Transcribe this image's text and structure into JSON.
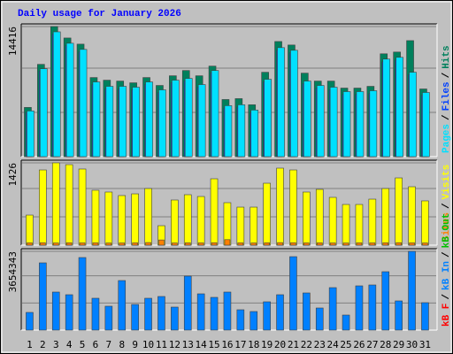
{
  "chart_data": [
    {
      "type": "bar",
      "title": "Daily usage for January 2026",
      "title_color": "#0000ff",
      "ylim": [
        0,
        14416
      ],
      "yticks": [
        14416
      ],
      "legend_separator": "/",
      "series": [
        {
          "name": "Hits",
          "color": "#00805c",
          "values": [
            5454,
            10227,
            14416,
            13149,
            12467,
            8766,
            8474,
            8376,
            8182,
            8766,
            7889,
            8961,
            9545,
            8961,
            10032,
            6331,
            6428,
            5747,
            9350,
            12759,
            12370,
            9253,
            8376,
            8376,
            7597,
            7597,
            7792,
            11396,
            11591,
            12857,
            7500
          ]
        },
        {
          "name": "Files",
          "color": "#0040ff",
          "values": [
            4900,
            9500,
            13600,
            12300,
            11600,
            8000,
            7500,
            7500,
            7400,
            8000,
            7100,
            8200,
            8400,
            7700,
            9300,
            5400,
            5500,
            4900,
            8300,
            11800,
            11500,
            8100,
            7600,
            7400,
            6900,
            6900,
            7000,
            10500,
            10700,
            9100,
            6800
          ]
        },
        {
          "name": "Pages",
          "color": "#00e0ff",
          "values": [
            5065,
            9740,
            13831,
            12565,
            11883,
            8279,
            7792,
            7792,
            7695,
            8279,
            7402,
            8474,
            8669,
            7987,
            9545,
            5649,
            5747,
            5162,
            8571,
            12078,
            11785,
            8376,
            7889,
            7695,
            7208,
            7208,
            7305,
            10811,
            11006,
            9350,
            7110
          ]
        }
      ]
    },
    {
      "type": "bar",
      "ylim": [
        0,
        1426
      ],
      "yticks": [
        1426
      ],
      "legend_separator": "/",
      "series": [
        {
          "name": "Visits",
          "color": "#ffff00",
          "values": [
            521,
            1303,
            1426,
            1395,
            1319,
            951,
            920,
            859,
            889,
            981,
            337,
            782,
            874,
            843,
            1150,
            736,
            659,
            659,
            1073,
            1334,
            1303,
            920,
            966,
            828,
            705,
            705,
            797,
            981,
            1165,
            1012,
            767
          ]
        },
        {
          "name": "Sites",
          "color": "#ff8000",
          "values": [
            40,
            42,
            38,
            41,
            39,
            40,
            37,
            38,
            40,
            45,
            90,
            38,
            40,
            39,
            42,
            95,
            40,
            38,
            41,
            44,
            42,
            39,
            40,
            38,
            37,
            40,
            39,
            41,
            43,
            40,
            38
          ]
        }
      ]
    },
    {
      "type": "bar",
      "ylim": [
        0,
        3654343
      ],
      "yticks": [
        3654343
      ],
      "legend_separator": "/",
      "categories": [
        "1",
        "2",
        "3",
        "4",
        "5",
        "6",
        "7",
        "8",
        "9",
        "10",
        "11",
        "12",
        "13",
        "14",
        "15",
        "16",
        "17",
        "18",
        "19",
        "20",
        "21",
        "22",
        "23",
        "24",
        "25",
        "26",
        "27",
        "28",
        "29",
        "30",
        "31"
      ],
      "category_colors": [
        "#000000",
        "#000000",
        "#008040",
        "#008040",
        "#000000",
        "#000000",
        "#000000",
        "#000000",
        "#000000",
        "#008040",
        "#008040",
        "#000000",
        "#000000",
        "#000000",
        "#000000",
        "#000000",
        "#008040",
        "#008040",
        "#000000",
        "#000000",
        "#000000",
        "#000000",
        "#000000",
        "#008040",
        "#008040",
        "#000000",
        "#000000",
        "#000000",
        "#000000",
        "#000000",
        "#008040"
      ],
      "series": [
        {
          "name": "kB Out",
          "color": "#00c000"
        },
        {
          "name": "kB In",
          "color": "#0080ff",
          "values": [
            821200,
            3120560,
            1765580,
            1642400,
            3366920,
            1478160,
            1108620,
            2299360,
            1190740,
            1478160,
            1560280,
            1067560,
            2504660,
            1683460,
            1519220,
            1765580,
            944380,
            862260,
            1313920,
            1642400,
            3407980,
            1724520,
            1026500,
            1970880,
            698020,
            2053000,
            2094060,
            2709960,
            1354980,
            3654343,
            1272860
          ]
        },
        {
          "name": "kB F",
          "color": "#ff0000"
        }
      ]
    }
  ]
}
